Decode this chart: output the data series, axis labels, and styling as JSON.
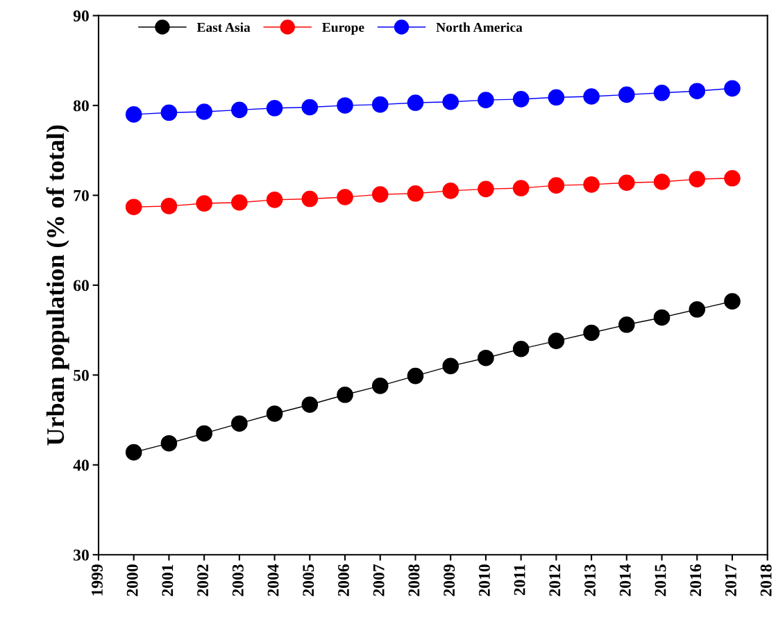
{
  "chart_data": {
    "type": "line",
    "ylabel": "Urban population (% of total)",
    "x": [
      2000,
      2001,
      2002,
      2003,
      2004,
      2005,
      2006,
      2007,
      2008,
      2009,
      2010,
      2011,
      2012,
      2013,
      2014,
      2015,
      2016,
      2017
    ],
    "series": [
      {
        "name": "East Asia",
        "color": "#000000",
        "values": [
          41.4,
          42.4,
          43.5,
          44.6,
          45.7,
          46.7,
          47.8,
          48.8,
          49.9,
          51.0,
          51.9,
          52.9,
          53.8,
          54.7,
          55.6,
          56.4,
          57.3,
          58.2
        ]
      },
      {
        "name": "Europe",
        "color": "#ff0000",
        "values": [
          68.7,
          68.8,
          69.1,
          69.2,
          69.5,
          69.6,
          69.8,
          70.1,
          70.2,
          70.5,
          70.7,
          70.8,
          71.1,
          71.2,
          71.4,
          71.5,
          71.8,
          71.9
        ]
      },
      {
        "name": "North America",
        "color": "#0000ff",
        "values": [
          79.0,
          79.2,
          79.3,
          79.5,
          79.7,
          79.8,
          80.0,
          80.1,
          80.3,
          80.4,
          80.6,
          80.7,
          80.9,
          81.0,
          81.2,
          81.4,
          81.6,
          81.9
        ]
      }
    ],
    "xlim": [
      1999,
      2018
    ],
    "xticks": [
      1999,
      2000,
      2001,
      2002,
      2003,
      2004,
      2005,
      2006,
      2007,
      2008,
      2009,
      2010,
      2011,
      2012,
      2013,
      2014,
      2015,
      2016,
      2017,
      2018
    ],
    "ylim": [
      30,
      90
    ],
    "yticks": [
      30,
      40,
      50,
      60,
      70,
      80,
      90
    ],
    "marker": "circle",
    "line_style": "solid",
    "grid": false,
    "legend": "top left"
  }
}
